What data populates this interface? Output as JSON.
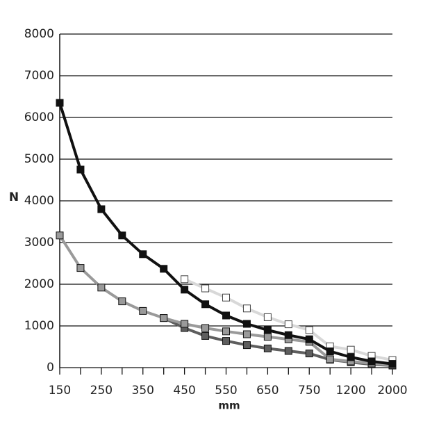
{
  "chart_data": {
    "type": "line",
    "y_label": "N",
    "x_label": "mm",
    "categories": [
      "150",
      null,
      "250",
      null,
      "350",
      null,
      "450",
      null,
      "550",
      null,
      "650",
      null,
      "750",
      null,
      "1200",
      null,
      "2000"
    ],
    "series": [
      {
        "color": "#d8d8d8",
        "marker_fill": "#ffffff",
        "values": [
          null,
          null,
          null,
          null,
          null,
          null,
          2120,
          1900,
          1680,
          1420,
          1210,
          1040,
          900,
          510,
          430,
          280,
          180
        ]
      },
      {
        "color": "#5e5e5e",
        "marker_fill": "#5e5e5e",
        "values": [
          null,
          null,
          null,
          null,
          null,
          1190,
          950,
          760,
          640,
          540,
          460,
          400,
          340,
          190,
          130,
          80,
          50
        ]
      },
      {
        "color": "#9a9a9a",
        "marker_fill": "#9a9a9a",
        "values": [
          3170,
          2390,
          1920,
          1590,
          1360,
          1190,
          1050,
          950,
          870,
          800,
          740,
          680,
          620,
          200,
          150,
          100,
          60
        ]
      },
      {
        "color": "#111111",
        "marker_fill": "#111111",
        "values": [
          6350,
          4750,
          3800,
          3170,
          2720,
          2370,
          1870,
          1520,
          1250,
          1050,
          900,
          780,
          680,
          390,
          250,
          150,
          90
        ]
      }
    ],
    "ylim": [
      0,
      8000
    ],
    "yticks": [
      0,
      1000,
      2000,
      3000,
      4000,
      5000,
      6000,
      7000,
      8000
    ],
    "grid": true
  }
}
